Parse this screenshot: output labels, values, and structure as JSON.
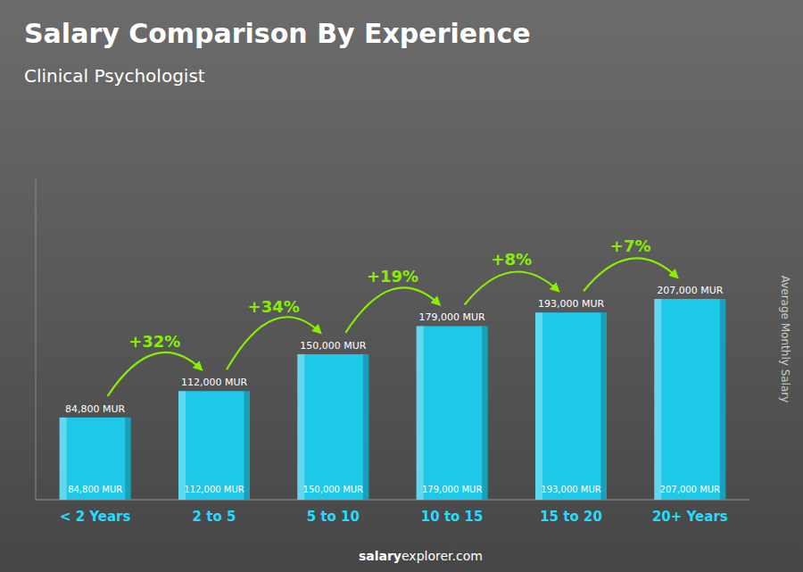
{
  "chart_data": {
    "type": "bar",
    "title": "Salary Comparison By Experience",
    "subtitle": "Clinical Psychologist",
    "ylabel": "Average Monthly Salary",
    "categories": [
      "< 2 Years",
      "2 to 5",
      "5 to 10",
      "10 to 15",
      "15 to 20",
      "20+ Years"
    ],
    "values": [
      84800,
      112000,
      150000,
      179000,
      193000,
      207000
    ],
    "value_labels": [
      "84,800 MUR",
      "112,000 MUR",
      "150,000 MUR",
      "179,000 MUR",
      "193,000 MUR",
      "207,000 MUR"
    ],
    "data_labels": true,
    "annotations": [
      "+32%",
      "+34%",
      "+19%",
      "+8%",
      "+7%"
    ],
    "footer": [
      "salary",
      "explorer.com"
    ],
    "color": "#1ec8e8",
    "ylim": [
      0,
      331200
    ],
    "tick_labels": "x",
    "grid": false
  }
}
